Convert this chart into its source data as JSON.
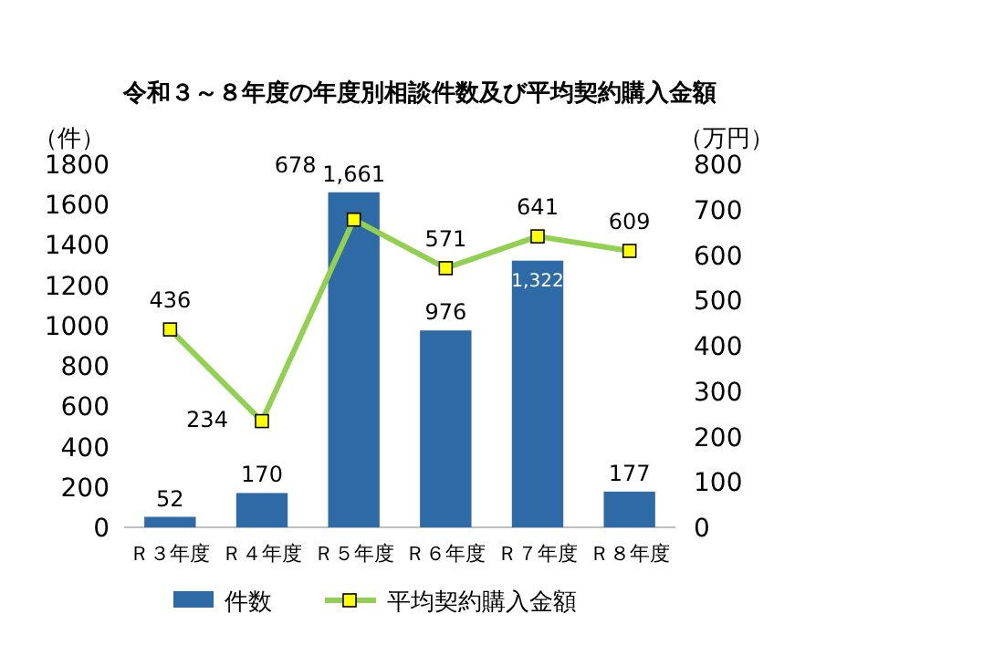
{
  "chart_data": {
    "type": "bar",
    "title": "令和３～８年度の年度別相談件数及び平均契約購入金額",
    "ylabel": "（件）",
    "y2label": "（万円）",
    "categories": [
      "Ｒ３年度",
      "Ｒ４年度",
      "Ｒ５年度",
      "Ｒ６年度",
      "Ｒ７年度",
      "Ｒ８年度"
    ],
    "series": [
      {
        "name": "件数",
        "color": "#2e6aa6",
        "values": [
          52,
          170,
          1661,
          976,
          1322,
          177
        ],
        "value_labels": [
          "52",
          "170",
          "1,661",
          "976",
          "1,322",
          "177"
        ]
      },
      {
        "name": "平均契約購入金額",
        "type": "line",
        "axis": "y2",
        "color": "#92d050",
        "marker": "square",
        "values": [
          436,
          234,
          678,
          571,
          641,
          609
        ],
        "value_labels": [
          "436",
          "234",
          "678",
          "571",
          "641",
          "609"
        ]
      }
    ],
    "ylim": [
      0,
      1800
    ],
    "yticks": [
      0,
      200,
      400,
      600,
      800,
      1000,
      1200,
      1400,
      1600,
      1800
    ],
    "y2lim": [
      0,
      800
    ],
    "y2ticks": [
      0,
      100,
      200,
      300,
      400,
      500,
      600,
      700,
      800
    ],
    "grid": false,
    "legend": "bottom"
  }
}
